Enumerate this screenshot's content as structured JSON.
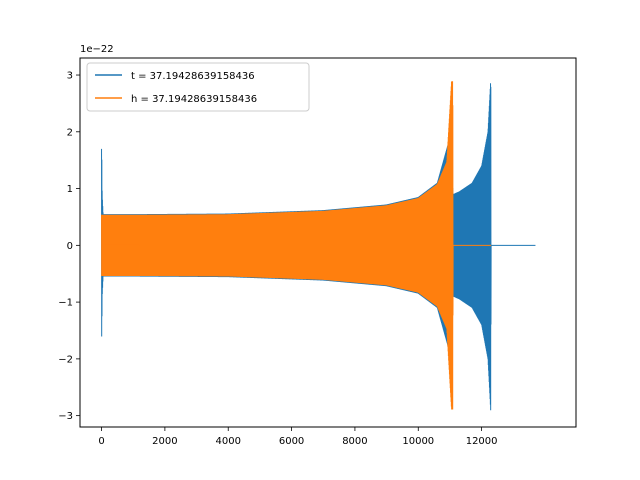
{
  "chart_data": {
    "type": "line",
    "title": "",
    "xlabel": "",
    "ylabel": "",
    "y_offset_label": "1e−22",
    "xlim": [
      -680,
      14980
    ],
    "ylim": [
      -3.2,
      3.3
    ],
    "xticks": [
      0,
      2000,
      4000,
      6000,
      8000,
      10000,
      12000
    ],
    "xtick_labels": [
      "0",
      "2000",
      "4000",
      "6000",
      "8000",
      "10000",
      "12000"
    ],
    "yticks": [
      -3,
      -2,
      -1,
      0,
      1,
      2,
      3
    ],
    "ytick_labels": [
      "−3",
      "−2",
      "−1",
      "0",
      "1",
      "2",
      "3"
    ],
    "grid": false,
    "legend_position": "upper-left",
    "series": [
      {
        "name": "t = 37.19428639158436",
        "color": "#1f77b4",
        "x": [
          0,
          10,
          20,
          50,
          100,
          1200,
          4000,
          7000,
          9000,
          10000,
          10600,
          11000,
          11100,
          11300,
          11700,
          12000,
          12200,
          12290,
          12300,
          13700
        ],
        "y_envelope": [
          1.7,
          1.5,
          0.9,
          0.55,
          0.55,
          0.55,
          0.56,
          0.62,
          0.72,
          0.85,
          1.1,
          1.9,
          0.9,
          0.95,
          1.1,
          1.4,
          2.0,
          2.95,
          0.0,
          0.0
        ]
      },
      {
        "name": "h = 37.19428639158436",
        "color": "#ff7f0e",
        "x": [
          0,
          100,
          1200,
          4000,
          7000,
          9000,
          10000,
          10600,
          10900,
          11050,
          11090,
          11100,
          12300
        ],
        "y_envelope": [
          0.55,
          0.55,
          0.55,
          0.56,
          0.62,
          0.72,
          0.85,
          1.1,
          1.5,
          2.95,
          2.95,
          0.0,
          0.0
        ]
      }
    ]
  }
}
